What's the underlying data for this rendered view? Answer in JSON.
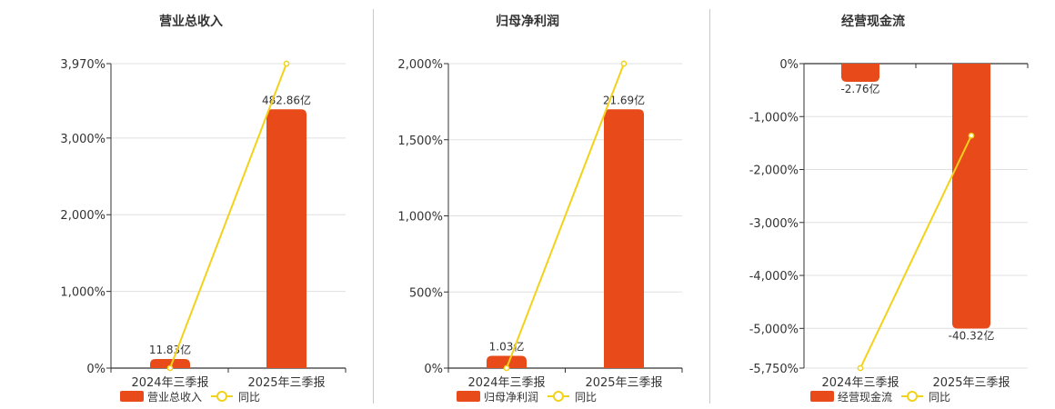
{
  "colors": {
    "bar": "#e84a1a",
    "line": "#f2d21a",
    "grid": "#e0e0e0",
    "axis": "#333333",
    "text": "#333333"
  },
  "chart_data": [
    {
      "type": "bar",
      "title": "营业总收入",
      "categories": [
        "2024年三季报",
        "2025年三季报"
      ],
      "series": [
        {
          "name": "营业总收入",
          "type": "bar",
          "values": [
            11.83,
            482.86
          ],
          "labels": [
            "11.83亿",
            "482.86亿"
          ]
        },
        {
          "name": "同比",
          "type": "line",
          "values": [
            0,
            3970
          ]
        }
      ],
      "yticks": [
        "3,970%",
        "3,000%",
        "2,000%",
        "1,000%",
        "0%"
      ],
      "ylim": [
        0,
        3970
      ],
      "grid": true,
      "legend": "bottom-left"
    },
    {
      "type": "bar",
      "title": "归母净利润",
      "categories": [
        "2024年三季报",
        "2025年三季报"
      ],
      "series": [
        {
          "name": "归母净利润",
          "type": "bar",
          "values": [
            1.03,
            21.69
          ],
          "labels": [
            "1.03亿",
            "21.69亿"
          ]
        },
        {
          "name": "同比",
          "type": "line",
          "values": [
            0,
            2000
          ]
        }
      ],
      "yticks": [
        "2,000%",
        "1,500%",
        "1,000%",
        "500%",
        "0%"
      ],
      "ylim": [
        0,
        2000
      ],
      "grid": true,
      "legend": "bottom-left"
    },
    {
      "type": "bar",
      "title": "经营现金流",
      "categories": [
        "2024年三季报",
        "2025年三季报"
      ],
      "series": [
        {
          "name": "经营现金流",
          "type": "bar",
          "values": [
            -2.76,
            -40.32
          ],
          "labels": [
            "-2.76亿",
            "-40.32亿"
          ]
        },
        {
          "name": "同比",
          "type": "line",
          "values": [
            -5750,
            -1360
          ]
        }
      ],
      "yticks": [
        "0%",
        "-1,000%",
        "-2,000%",
        "-3,000%",
        "-4,000%",
        "-5,000%",
        "-5,750%"
      ],
      "ylim": [
        -5750,
        0
      ],
      "grid": true,
      "legend": "bottom-left"
    }
  ]
}
